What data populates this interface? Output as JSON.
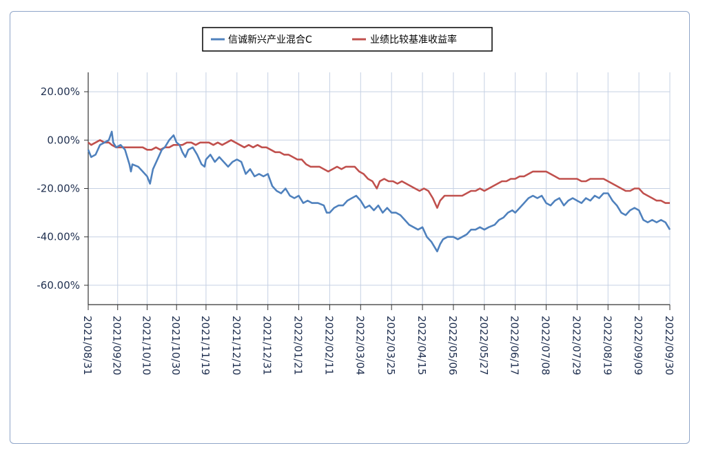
{
  "chart_data": {
    "type": "line",
    "title": "",
    "xlabel": "",
    "ylabel": "",
    "ylim": [
      -68,
      28
    ],
    "grid": true,
    "legend_position": "top-center",
    "x_tick_labels": [
      "2021/08/31",
      "2021/09/20",
      "2021/10/10",
      "2021/10/30",
      "2021/11/19",
      "2021/12/10",
      "2021/12/31",
      "2022/01/21",
      "2022/02/11",
      "2022/03/04",
      "2022/03/25",
      "2022/04/15",
      "2022/05/06",
      "2022/05/27",
      "2022/06/17",
      "2022/07/08",
      "2022/07/29",
      "2022/08/19",
      "2022/09/09",
      "2022/09/30"
    ],
    "y_tick_labels": [
      "20.00%",
      "0.00%",
      "-20.00%",
      "-40.00%",
      "-60.00%"
    ],
    "y_tick_values": [
      20,
      0,
      -20,
      -40,
      -60
    ],
    "series": [
      {
        "name": "信诚新兴产业混合C",
        "color": "#4f81bd",
        "points": [
          [
            "2021/08/31",
            -4
          ],
          [
            "2021/09/02",
            -7
          ],
          [
            "2021/09/05",
            -6
          ],
          [
            "2021/09/08",
            -2
          ],
          [
            "2021/09/11",
            -1
          ],
          [
            "2021/09/14",
            0
          ],
          [
            "2021/09/16",
            3.5
          ],
          [
            "2021/09/17",
            -1
          ],
          [
            "2021/09/19",
            -3
          ],
          [
            "2021/09/22",
            -2
          ],
          [
            "2021/09/25",
            -4
          ],
          [
            "2021/09/28",
            -10
          ],
          [
            "2021/09/29",
            -13
          ],
          [
            "2021/09/30",
            -10
          ],
          [
            "2021/10/04",
            -11
          ],
          [
            "2021/10/07",
            -13
          ],
          [
            "2021/10/10",
            -15
          ],
          [
            "2021/10/12",
            -18
          ],
          [
            "2021/10/14",
            -12
          ],
          [
            "2021/10/17",
            -8
          ],
          [
            "2021/10/20",
            -4
          ],
          [
            "2021/10/22",
            -3
          ],
          [
            "2021/10/25",
            0
          ],
          [
            "2021/10/28",
            2
          ],
          [
            "2021/10/30",
            -1
          ],
          [
            "2021/11/01",
            -2
          ],
          [
            "2021/11/03",
            -5
          ],
          [
            "2021/11/05",
            -7
          ],
          [
            "2021/11/07",
            -4
          ],
          [
            "2021/11/10",
            -3
          ],
          [
            "2021/11/13",
            -6
          ],
          [
            "2021/11/16",
            -10
          ],
          [
            "2021/11/18",
            -11
          ],
          [
            "2021/11/19",
            -8
          ],
          [
            "2021/11/22",
            -6
          ],
          [
            "2021/11/25",
            -9
          ],
          [
            "2021/11/28",
            -7
          ],
          [
            "2021/12/01",
            -9
          ],
          [
            "2021/12/04",
            -11
          ],
          [
            "2021/12/07",
            -9
          ],
          [
            "2021/12/10",
            -8
          ],
          [
            "2021/12/13",
            -9
          ],
          [
            "2021/12/16",
            -14
          ],
          [
            "2021/12/19",
            -12
          ],
          [
            "2021/12/22",
            -15
          ],
          [
            "2021/12/25",
            -14
          ],
          [
            "2021/12/28",
            -15
          ],
          [
            "2021/12/31",
            -14
          ],
          [
            "2022/01/03",
            -19
          ],
          [
            "2022/01/06",
            -21
          ],
          [
            "2022/01/09",
            -22
          ],
          [
            "2022/01/12",
            -20
          ],
          [
            "2022/01/15",
            -23
          ],
          [
            "2022/01/18",
            -24
          ],
          [
            "2022/01/21",
            -23
          ],
          [
            "2022/01/24",
            -26
          ],
          [
            "2022/01/27",
            -25
          ],
          [
            "2022/01/30",
            -26
          ],
          [
            "2022/02/03",
            -26
          ],
          [
            "2022/02/07",
            -27
          ],
          [
            "2022/02/09",
            -30
          ],
          [
            "2022/02/11",
            -30
          ],
          [
            "2022/02/14",
            -28
          ],
          [
            "2022/02/17",
            -27
          ],
          [
            "2022/02/20",
            -27
          ],
          [
            "2022/02/23",
            -25
          ],
          [
            "2022/02/26",
            -24
          ],
          [
            "2022/03/01",
            -23
          ],
          [
            "2022/03/04",
            -25
          ],
          [
            "2022/03/07",
            -28
          ],
          [
            "2022/03/10",
            -27
          ],
          [
            "2022/03/13",
            -29
          ],
          [
            "2022/03/16",
            -27
          ],
          [
            "2022/03/19",
            -30
          ],
          [
            "2022/03/22",
            -28
          ],
          [
            "2022/03/25",
            -30
          ],
          [
            "2022/03/28",
            -30
          ],
          [
            "2022/03/31",
            -31
          ],
          [
            "2022/04/03",
            -33
          ],
          [
            "2022/04/06",
            -35
          ],
          [
            "2022/04/09",
            -36
          ],
          [
            "2022/04/12",
            -37
          ],
          [
            "2022/04/15",
            -36
          ],
          [
            "2022/04/18",
            -40
          ],
          [
            "2022/04/21",
            -42
          ],
          [
            "2022/04/25",
            -46
          ],
          [
            "2022/04/27",
            -43
          ],
          [
            "2022/04/29",
            -41
          ],
          [
            "2022/05/02",
            -40
          ],
          [
            "2022/05/06",
            -40
          ],
          [
            "2022/05/09",
            -41
          ],
          [
            "2022/05/12",
            -40
          ],
          [
            "2022/05/15",
            -39
          ],
          [
            "2022/05/18",
            -37
          ],
          [
            "2022/05/21",
            -37
          ],
          [
            "2022/05/24",
            -36
          ],
          [
            "2022/05/27",
            -37
          ],
          [
            "2022/05/30",
            -36
          ],
          [
            "2022/06/03",
            -35
          ],
          [
            "2022/06/06",
            -33
          ],
          [
            "2022/06/09",
            -32
          ],
          [
            "2022/06/12",
            -30
          ],
          [
            "2022/06/15",
            -29
          ],
          [
            "2022/06/17",
            -30
          ],
          [
            "2022/06/20",
            -28
          ],
          [
            "2022/06/23",
            -26
          ],
          [
            "2022/06/26",
            -24
          ],
          [
            "2022/06/29",
            -23
          ],
          [
            "2022/07/02",
            -24
          ],
          [
            "2022/07/05",
            -23
          ],
          [
            "2022/07/08",
            -26
          ],
          [
            "2022/07/11",
            -27
          ],
          [
            "2022/07/14",
            -25
          ],
          [
            "2022/07/17",
            -24
          ],
          [
            "2022/07/20",
            -27
          ],
          [
            "2022/07/23",
            -25
          ],
          [
            "2022/07/26",
            -24
          ],
          [
            "2022/07/29",
            -25
          ],
          [
            "2022/08/01",
            -26
          ],
          [
            "2022/08/04",
            -24
          ],
          [
            "2022/08/07",
            -25
          ],
          [
            "2022/08/10",
            -23
          ],
          [
            "2022/08/13",
            -24
          ],
          [
            "2022/08/16",
            -22
          ],
          [
            "2022/08/19",
            -22
          ],
          [
            "2022/08/22",
            -25
          ],
          [
            "2022/08/25",
            -27
          ],
          [
            "2022/08/28",
            -30
          ],
          [
            "2022/08/31",
            -31
          ],
          [
            "2022/09/03",
            -29
          ],
          [
            "2022/09/06",
            -28
          ],
          [
            "2022/09/09",
            -29
          ],
          [
            "2022/09/12",
            -33
          ],
          [
            "2022/09/15",
            -34
          ],
          [
            "2022/09/18",
            -33
          ],
          [
            "2022/09/21",
            -34
          ],
          [
            "2022/09/24",
            -33
          ],
          [
            "2022/09/27",
            -34
          ],
          [
            "2022/09/30",
            -37
          ]
        ]
      },
      {
        "name": "业绩比较基准收益率",
        "color": "#c0504d",
        "points": [
          [
            "2021/08/31",
            -1
          ],
          [
            "2021/09/02",
            -2
          ],
          [
            "2021/09/05",
            -1
          ],
          [
            "2021/09/08",
            0
          ],
          [
            "2021/09/11",
            -1
          ],
          [
            "2021/09/14",
            -1
          ],
          [
            "2021/09/16",
            -2
          ],
          [
            "2021/09/19",
            -3
          ],
          [
            "2021/09/22",
            -3
          ],
          [
            "2021/09/25",
            -3
          ],
          [
            "2021/09/28",
            -3
          ],
          [
            "2021/10/01",
            -3
          ],
          [
            "2021/10/04",
            -3
          ],
          [
            "2021/10/07",
            -3
          ],
          [
            "2021/10/10",
            -4
          ],
          [
            "2021/10/13",
            -4
          ],
          [
            "2021/10/16",
            -3
          ],
          [
            "2021/10/19",
            -4
          ],
          [
            "2021/10/22",
            -3
          ],
          [
            "2021/10/25",
            -3
          ],
          [
            "2021/10/28",
            -2
          ],
          [
            "2021/10/31",
            -2
          ],
          [
            "2021/11/03",
            -2
          ],
          [
            "2021/11/06",
            -1
          ],
          [
            "2021/11/09",
            -1
          ],
          [
            "2021/11/12",
            -2
          ],
          [
            "2021/11/15",
            -1
          ],
          [
            "2021/11/18",
            -1
          ],
          [
            "2021/11/21",
            -1
          ],
          [
            "2021/11/24",
            -2
          ],
          [
            "2021/11/27",
            -1
          ],
          [
            "2021/11/30",
            -2
          ],
          [
            "2021/12/03",
            -1
          ],
          [
            "2021/12/06",
            0
          ],
          [
            "2021/12/09",
            -1
          ],
          [
            "2021/12/12",
            -2
          ],
          [
            "2021/12/15",
            -3
          ],
          [
            "2021/12/18",
            -2
          ],
          [
            "2021/12/21",
            -3
          ],
          [
            "2021/12/24",
            -2
          ],
          [
            "2021/12/27",
            -3
          ],
          [
            "2021/12/30",
            -3
          ],
          [
            "2022/01/02",
            -4
          ],
          [
            "2022/01/05",
            -5
          ],
          [
            "2022/01/08",
            -5
          ],
          [
            "2022/01/11",
            -6
          ],
          [
            "2022/01/14",
            -6
          ],
          [
            "2022/01/17",
            -7
          ],
          [
            "2022/01/20",
            -8
          ],
          [
            "2022/01/23",
            -8
          ],
          [
            "2022/01/26",
            -10
          ],
          [
            "2022/01/29",
            -11
          ],
          [
            "2022/02/01",
            -11
          ],
          [
            "2022/02/04",
            -11
          ],
          [
            "2022/02/07",
            -12
          ],
          [
            "2022/02/10",
            -13
          ],
          [
            "2022/02/13",
            -12
          ],
          [
            "2022/02/16",
            -11
          ],
          [
            "2022/02/19",
            -12
          ],
          [
            "2022/02/22",
            -11
          ],
          [
            "2022/02/25",
            -11
          ],
          [
            "2022/02/28",
            -11
          ],
          [
            "2022/03/03",
            -13
          ],
          [
            "2022/03/06",
            -14
          ],
          [
            "2022/03/09",
            -16
          ],
          [
            "2022/03/12",
            -17
          ],
          [
            "2022/03/15",
            -20
          ],
          [
            "2022/03/17",
            -17
          ],
          [
            "2022/03/20",
            -16
          ],
          [
            "2022/03/23",
            -17
          ],
          [
            "2022/03/26",
            -17
          ],
          [
            "2022/03/29",
            -18
          ],
          [
            "2022/04/01",
            -17
          ],
          [
            "2022/04/04",
            -18
          ],
          [
            "2022/04/07",
            -19
          ],
          [
            "2022/04/10",
            -20
          ],
          [
            "2022/04/13",
            -21
          ],
          [
            "2022/04/16",
            -20
          ],
          [
            "2022/04/19",
            -21
          ],
          [
            "2022/04/22",
            -24
          ],
          [
            "2022/04/25",
            -28
          ],
          [
            "2022/04/27",
            -25
          ],
          [
            "2022/04/30",
            -23
          ],
          [
            "2022/05/03",
            -23
          ],
          [
            "2022/05/06",
            -23
          ],
          [
            "2022/05/09",
            -23
          ],
          [
            "2022/05/12",
            -23
          ],
          [
            "2022/05/15",
            -22
          ],
          [
            "2022/05/18",
            -21
          ],
          [
            "2022/05/21",
            -21
          ],
          [
            "2022/05/24",
            -20
          ],
          [
            "2022/05/27",
            -21
          ],
          [
            "2022/05/30",
            -20
          ],
          [
            "2022/06/02",
            -19
          ],
          [
            "2022/06/05",
            -18
          ],
          [
            "2022/06/08",
            -17
          ],
          [
            "2022/06/11",
            -17
          ],
          [
            "2022/06/14",
            -16
          ],
          [
            "2022/06/17",
            -16
          ],
          [
            "2022/06/20",
            -15
          ],
          [
            "2022/06/23",
            -15
          ],
          [
            "2022/06/26",
            -14
          ],
          [
            "2022/06/29",
            -13
          ],
          [
            "2022/07/02",
            -13
          ],
          [
            "2022/07/05",
            -13
          ],
          [
            "2022/07/08",
            -13
          ],
          [
            "2022/07/11",
            -14
          ],
          [
            "2022/07/14",
            -15
          ],
          [
            "2022/07/17",
            -16
          ],
          [
            "2022/07/20",
            -16
          ],
          [
            "2022/07/23",
            -16
          ],
          [
            "2022/07/26",
            -16
          ],
          [
            "2022/07/29",
            -16
          ],
          [
            "2022/08/01",
            -17
          ],
          [
            "2022/08/04",
            -17
          ],
          [
            "2022/08/07",
            -16
          ],
          [
            "2022/08/10",
            -16
          ],
          [
            "2022/08/13",
            -16
          ],
          [
            "2022/08/16",
            -16
          ],
          [
            "2022/08/19",
            -17
          ],
          [
            "2022/08/22",
            -18
          ],
          [
            "2022/08/25",
            -19
          ],
          [
            "2022/08/28",
            -20
          ],
          [
            "2022/08/31",
            -21
          ],
          [
            "2022/09/03",
            -21
          ],
          [
            "2022/09/06",
            -20
          ],
          [
            "2022/09/09",
            -20
          ],
          [
            "2022/09/12",
            -22
          ],
          [
            "2022/09/15",
            -23
          ],
          [
            "2022/09/18",
            -24
          ],
          [
            "2022/09/21",
            -25
          ],
          [
            "2022/09/24",
            -25
          ],
          [
            "2022/09/27",
            -26
          ],
          [
            "2022/09/30",
            -26
          ]
        ]
      }
    ]
  }
}
